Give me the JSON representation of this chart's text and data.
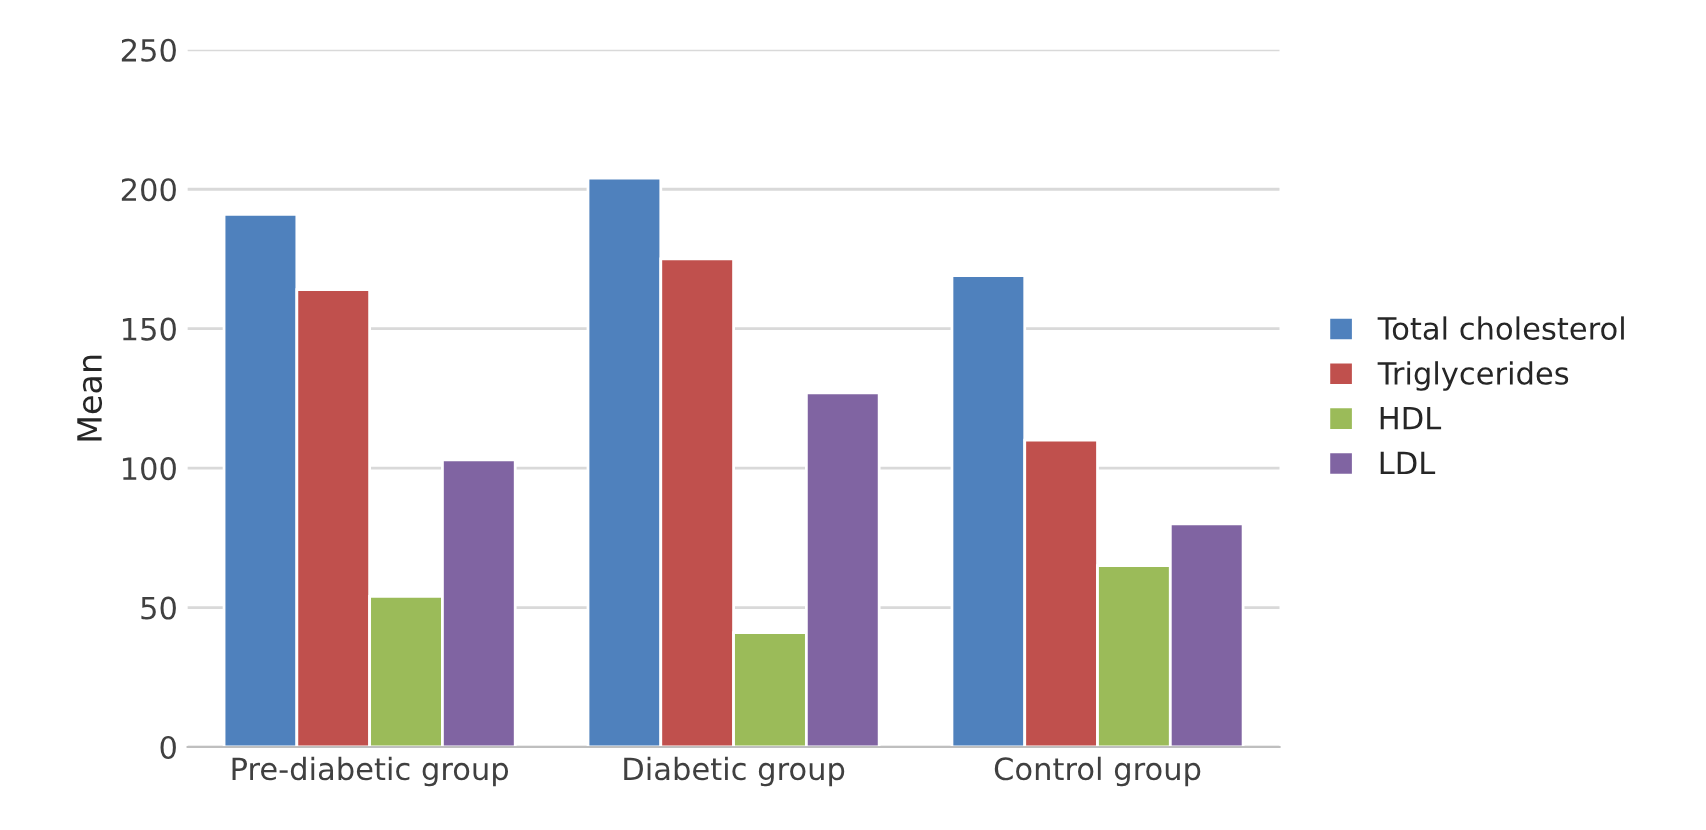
{
  "chart_data": {
    "type": "bar",
    "ylabel": "Mean",
    "categories": [
      "Pre-diabetic group",
      "Diabetic group",
      "Control group"
    ],
    "series": [
      {
        "name": "Total cholesterol",
        "color": "#4f81bd",
        "values": [
          191,
          204,
          169
        ]
      },
      {
        "name": "Triglycerides",
        "color": "#c0504d",
        "values": [
          164,
          175,
          110
        ]
      },
      {
        "name": "HDL",
        "color": "#9bbb59",
        "values": [
          54,
          41,
          65
        ]
      },
      {
        "name": "LDL",
        "color": "#8064a2",
        "values": [
          103,
          127,
          80
        ]
      }
    ],
    "ylim": [
      0,
      250
    ],
    "yticks": [
      0,
      50,
      100,
      150,
      200,
      250
    ],
    "grid": "y",
    "legend": "right"
  }
}
